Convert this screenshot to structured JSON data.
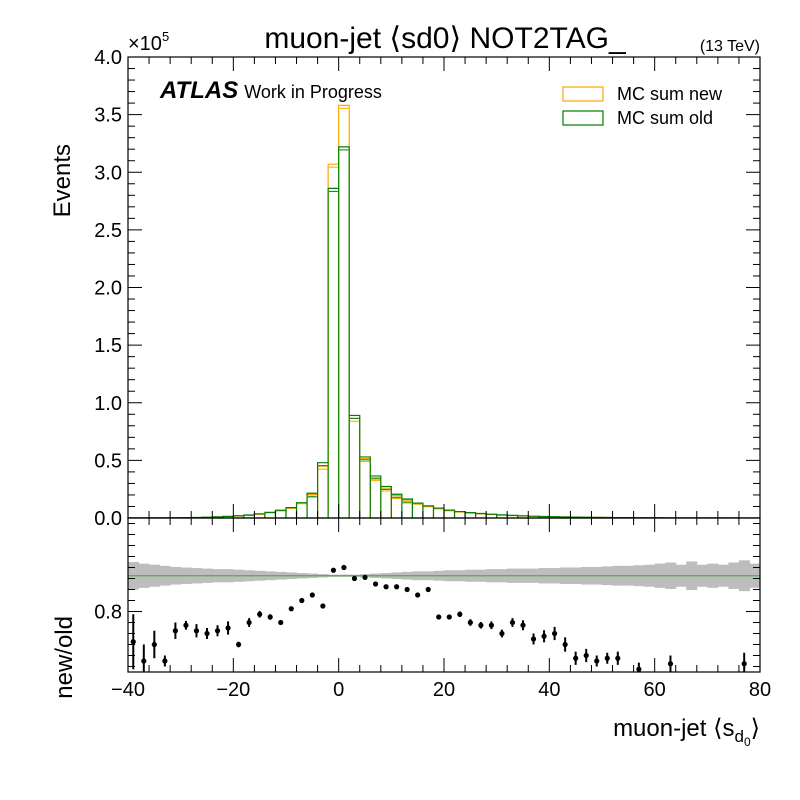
{
  "chart_data": [
    {
      "type": "step-histogram",
      "title": "muon-jet ⟨sd0⟩ NOT2TAG_",
      "energy_label": "(13 TeV)",
      "experiment_label": "ATLAS",
      "experiment_status": "Work in Progress",
      "ylabel": "Events",
      "y_multiplier": "×10",
      "y_multiplier_exponent": "5",
      "xlim": [
        -40,
        80
      ],
      "ylim": [
        0,
        400000
      ],
      "x_ticks": [
        -40,
        -20,
        0,
        20,
        40,
        60,
        80
      ],
      "x_tick_labels": [
        "−40",
        "−20",
        "0",
        "20",
        "40",
        "60",
        "80"
      ],
      "y_ticks": [
        0,
        50000,
        100000,
        150000,
        200000,
        250000,
        300000,
        350000,
        400000
      ],
      "y_tick_labels": [
        "0.0",
        "0.5",
        "1.0",
        "1.5",
        "2.0",
        "2.5",
        "3.0",
        "3.5",
        "4.0"
      ],
      "legend_position": "top-right",
      "bin_edges": [
        -40,
        -38,
        -36,
        -34,
        -32,
        -30,
        -28,
        -26,
        -24,
        -22,
        -20,
        -18,
        -16,
        -14,
        -12,
        -10,
        -8,
        -6,
        -4,
        -2,
        0,
        2,
        4,
        6,
        8,
        10,
        12,
        14,
        16,
        18,
        20,
        22,
        24,
        26,
        28,
        30,
        32,
        34,
        36,
        38,
        40,
        42,
        44,
        46,
        48,
        50,
        52,
        54,
        56,
        58,
        60,
        62,
        64,
        66,
        68,
        70,
        72,
        74,
        76,
        78,
        80
      ],
      "series": [
        {
          "name": "MC sum new",
          "color": "#ffa500",
          "values": [
            100,
            120,
            150,
            180,
            220,
            300,
            400,
            600,
            900,
            1200,
            1700,
            2300,
            3200,
            4500,
            6200,
            8400,
            12500,
            20500,
            45000,
            307000,
            358000,
            86500,
            51500,
            35000,
            26000,
            19500,
            15500,
            12000,
            9800,
            8000,
            6300,
            5200,
            4300,
            3600,
            3000,
            2500,
            2100,
            1750,
            1450,
            1200,
            1000,
            850,
            700,
            600,
            500,
            420,
            360,
            300,
            260,
            220,
            190,
            160,
            140,
            120,
            100,
            90,
            80,
            70,
            60,
            50
          ]
        },
        {
          "name": "MC sum old",
          "color": "#008000",
          "values": [
            140,
            160,
            190,
            220,
            260,
            360,
            460,
            680,
            1050,
            1400,
            1950,
            2600,
            3550,
            4900,
            6700,
            9000,
            13300,
            21500,
            48000,
            286000,
            322000,
            89000,
            53000,
            36500,
            27400,
            20600,
            16500,
            12900,
            10500,
            8600,
            6800,
            5600,
            4650,
            3900,
            3250,
            2700,
            2280,
            1900,
            1560,
            1310,
            1100,
            940,
            790,
            670,
            560,
            470,
            400,
            335,
            290,
            245,
            210,
            180,
            155,
            135,
            112,
            100,
            88,
            77,
            66,
            56
          ]
        }
      ]
    },
    {
      "type": "ratio-scatter",
      "ylabel": "new/old",
      "xlabel": "muon-jet ⟨s",
      "xlabel_sub": "d",
      "xlabel_subsub": "0",
      "xlabel_end": "⟩",
      "xlim": [
        -40,
        80
      ],
      "ylim": [
        0.69,
        0.97
      ],
      "y_ticks": [
        0.8
      ],
      "y_tick_labels": [
        "0.8"
      ],
      "band_color": "#bdbdbd",
      "reference_line_value": 0.865,
      "reference_line_color": "#4caf50",
      "points": {
        "x": [
          -39,
          -37,
          -35,
          -33,
          -31,
          -29,
          -27,
          -25,
          -23,
          -21,
          -19,
          -17,
          -15,
          -13,
          -11,
          -9,
          -7,
          -5,
          -3,
          -1,
          1,
          3,
          5,
          7,
          9,
          11,
          13,
          15,
          17,
          19,
          21,
          23,
          25,
          27,
          29,
          31,
          33,
          35,
          37,
          39,
          41,
          43,
          45,
          47,
          49,
          51,
          53,
          57,
          63,
          77
        ],
        "y": [
          0.745,
          0.71,
          0.74,
          0.71,
          0.765,
          0.775,
          0.765,
          0.76,
          0.765,
          0.77,
          0.74,
          0.78,
          0.795,
          0.79,
          0.78,
          0.805,
          0.82,
          0.83,
          0.81,
          0.875,
          0.88,
          0.86,
          0.862,
          0.85,
          0.845,
          0.845,
          0.84,
          0.83,
          0.84,
          0.79,
          0.79,
          0.795,
          0.78,
          0.775,
          0.775,
          0.76,
          0.78,
          0.775,
          0.75,
          0.755,
          0.76,
          0.74,
          0.715,
          0.72,
          0.71,
          0.715,
          0.715,
          0.695,
          0.705,
          0.705
        ],
        "err": [
          0.05,
          0.03,
          0.025,
          0.01,
          0.015,
          0.008,
          0.012,
          0.01,
          0.01,
          0.012,
          0.005,
          0.008,
          0.006,
          0.005,
          0.004,
          0.004,
          0.003,
          0.002,
          0.002,
          0.001,
          0.001,
          0.001,
          0.002,
          0.002,
          0.002,
          0.003,
          0.003,
          0.003,
          0.004,
          0.004,
          0.004,
          0.005,
          0.006,
          0.006,
          0.007,
          0.007,
          0.008,
          0.009,
          0.01,
          0.011,
          0.012,
          0.013,
          0.012,
          0.012,
          0.01,
          0.01,
          0.012,
          0.012,
          0.015,
          0.02
        ]
      },
      "band_halfwidth": [
        0.025,
        0.022,
        0.02,
        0.018,
        0.016,
        0.015,
        0.014,
        0.013,
        0.012,
        0.012,
        0.011,
        0.01,
        0.009,
        0.008,
        0.007,
        0.006,
        0.005,
        0.004,
        0.003,
        0.002,
        0.002,
        0.002,
        0.003,
        0.004,
        0.005,
        0.006,
        0.007,
        0.008,
        0.008,
        0.009,
        0.01,
        0.01,
        0.011,
        0.011,
        0.012,
        0.012,
        0.013,
        0.013,
        0.013,
        0.014,
        0.014,
        0.015,
        0.015,
        0.016,
        0.016,
        0.017,
        0.018,
        0.018,
        0.019,
        0.02,
        0.022,
        0.024,
        0.02,
        0.026,
        0.02,
        0.022,
        0.02,
        0.024,
        0.028,
        0.022
      ]
    }
  ]
}
